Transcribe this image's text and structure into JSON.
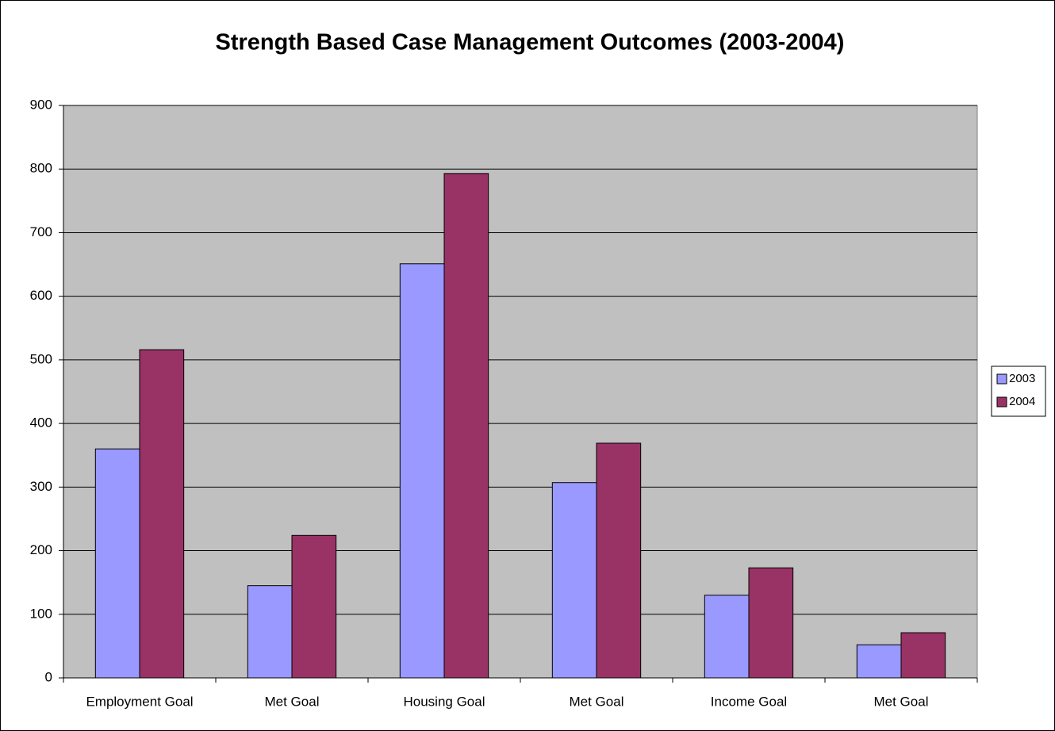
{
  "chart_data": {
    "type": "bar",
    "title": "Strength Based Case Management Outcomes (2003-2004)",
    "categories": [
      "Employment Goal",
      "Met Goal",
      "Housing Goal",
      "Met Goal",
      "Income Goal",
      "Met Goal"
    ],
    "series": [
      {
        "name": "2003",
        "color": "#9999ff",
        "values": [
          360,
          145,
          651,
          307,
          130,
          52
        ]
      },
      {
        "name": "2004",
        "color": "#993366",
        "values": [
          516,
          224,
          793,
          369,
          173,
          71
        ]
      }
    ],
    "ylim": [
      0,
      900
    ],
    "yticks": [
      0,
      100,
      200,
      300,
      400,
      500,
      600,
      700,
      800,
      900
    ],
    "grid": true,
    "legend": "right",
    "plot_background": "#c0c0c0"
  }
}
